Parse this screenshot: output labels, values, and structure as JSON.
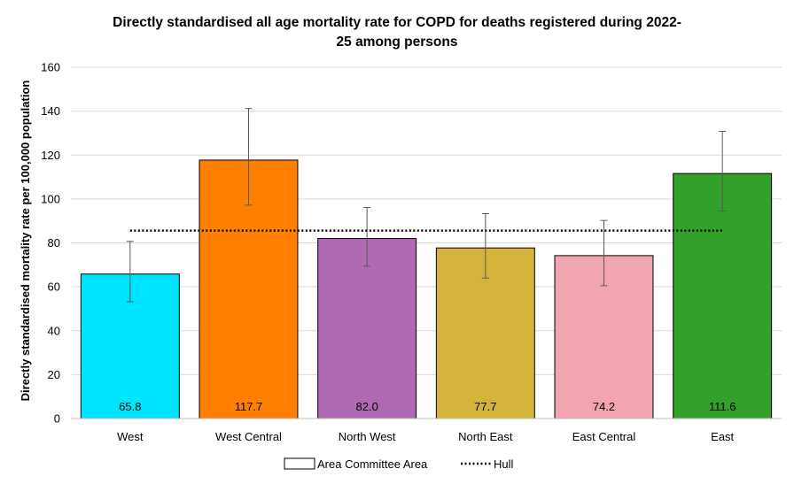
{
  "chart_data": {
    "type": "bar",
    "title_line1": "Directly standardised all age mortality rate for COPD for deaths registered during 2022-",
    "title_line2": "25 among persons",
    "ylabel": "Directly standardised mortality rate per 100,000 population",
    "xlabel": "",
    "ylim": [
      0,
      160
    ],
    "yticks": [
      "0",
      "20",
      "40",
      "60",
      "80",
      "100",
      "120",
      "140",
      "160"
    ],
    "grid": true,
    "categories": [
      "West",
      "West Central",
      "North West",
      "North East",
      "East Central",
      "East"
    ],
    "values": [
      65.8,
      117.7,
      82.0,
      77.7,
      74.2,
      111.6
    ],
    "value_labels": [
      "65.8",
      "117.7",
      "82.0",
      "77.7",
      "74.2",
      "111.6"
    ],
    "error_lower": [
      53.2,
      97.2,
      69.4,
      64.0,
      60.5,
      94.5
    ],
    "error_upper": [
      80.7,
      141.2,
      96.1,
      93.3,
      90.2,
      130.8
    ],
    "bar_colors": [
      "#00e5ff",
      "#ff7f00",
      "#b06ab3",
      "#d4b43a",
      "#f2a5b0",
      "#33a02c"
    ],
    "reference_line": {
      "name": "Hull",
      "value": 85.6
    },
    "legend": {
      "placement": "bottom",
      "items": [
        "Area Committee Area",
        "Hull"
      ]
    }
  }
}
